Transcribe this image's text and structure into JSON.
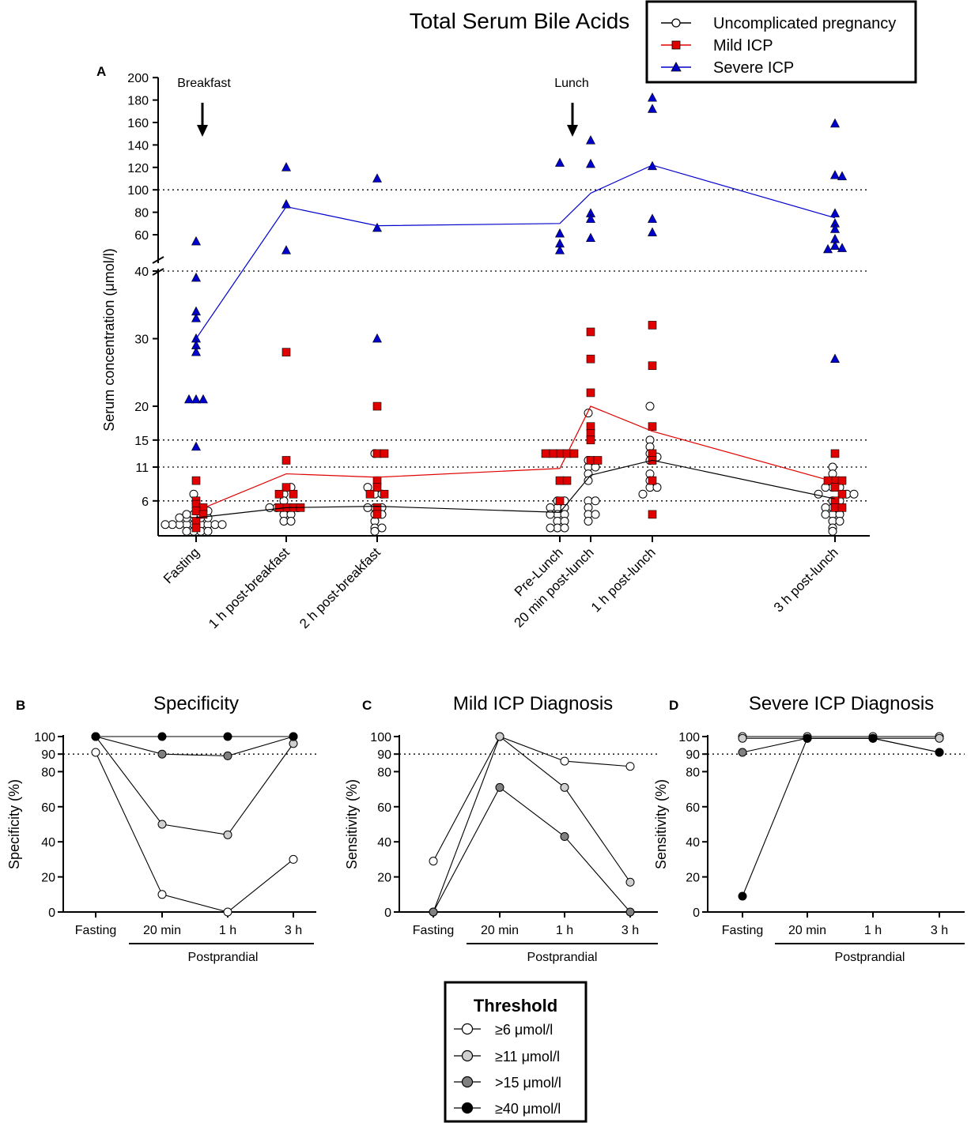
{
  "panel_a": {
    "title": "Total Serum Bile Acids",
    "letter": "A",
    "ylabel": "Serum concentration (μmol/l)",
    "annotations": [
      "Breakfast",
      "Lunch"
    ],
    "legend": [
      "Uncomplicated pregnancy",
      "Mild ICP",
      "Severe ICP"
    ]
  },
  "panel_b": {
    "letter": "B",
    "title": "Specificity",
    "ylabel": "Specificity (%)",
    "group_label": "Postprandial"
  },
  "panel_c": {
    "letter": "C",
    "title": "Mild ICP Diagnosis",
    "ylabel": "Sensitivity (%)",
    "group_label": "Postprandial"
  },
  "panel_d": {
    "letter": "D",
    "title": "Severe ICP Diagnosis",
    "ylabel": "Sensitivity (%)",
    "group_label": "Postprandial"
  },
  "threshold_legend": {
    "title": "Threshold",
    "items": [
      "≥6 μmol/l",
      "≥11 μmol/l",
      ">15 μmol/l",
      "≥40 μmol/l"
    ],
    "colors": [
      "#ffffff",
      "#cfcfcf",
      "#808080",
      "#000000"
    ]
  },
  "chart_data": [
    {
      "type": "scatter",
      "title": "Total Serum Bile Acids",
      "ylabel": "Serum concentration (μmol/l)",
      "y_axis": "broken: 0-40 linear, 40-200 compressed",
      "y_ticks_lower": [
        6,
        11,
        15,
        20,
        30,
        40
      ],
      "y_ticks_upper": [
        60,
        80,
        100,
        120,
        140,
        160,
        180,
        200
      ],
      "reference_lines": [
        6,
        11,
        15,
        40,
        100
      ],
      "categories": [
        "Fasting",
        "1 h post-breakfast",
        "2 h post-breakfast",
        "Pre-Lunch",
        "20 min post-lunch",
        "1 h post-lunch",
        "3 h post-lunch"
      ],
      "colors": {
        "Uncomplicated pregnancy": "#000000",
        "Mild ICP": "#e00000",
        "Severe ICP": "#0000cc"
      },
      "series": [
        {
          "name": "Uncomplicated pregnancy",
          "marker": "circle",
          "mean": [
            3.5,
            5,
            5.2,
            4.3,
            9.8,
            12,
            6.3
          ],
          "points": [
            [
              2.5,
              2.5,
              2.5,
              2.5,
              2.5,
              2.5,
              2.5,
              2.5,
              2.5,
              3.5,
              3.5,
              3.5,
              3.5,
              3.5,
              4,
              4,
              4,
              1.5,
              1.5,
              1.5,
              1.5,
              7,
              4.5
            ],
            [
              5,
              5,
              5,
              5,
              5,
              4,
              4,
              3,
              3,
              7,
              8,
              6
            ],
            [
              3,
              2,
              4,
              5,
              5,
              5,
              7,
              7,
              8,
              4,
              2,
              1.5,
              13
            ],
            [
              5,
              5,
              5,
              4,
              4,
              4,
              3,
              3,
              2,
              2,
              2,
              6,
              6
            ],
            [
              12,
              11,
              11,
              10,
              9,
              6,
              6,
              5,
              4,
              4,
              3,
              19
            ],
            [
              15,
              14,
              13,
              12,
              10,
              9,
              8,
              8,
              7,
              20,
              12.5
            ],
            [
              8,
              8,
              8,
              7,
              7,
              7,
              6,
              6,
              5,
              5,
              5,
              4,
              4,
              4,
              3,
              3,
              2,
              1.5,
              11,
              10,
              9
            ]
          ]
        },
        {
          "name": "Mild ICP",
          "marker": "square",
          "mean": [
            4.5,
            10,
            9.5,
            10.8,
            20,
            16.3,
            8.8
          ],
          "points": [
            [
              9,
              6,
              5.5,
              5,
              4.5,
              4,
              3,
              2
            ],
            [
              28,
              12,
              8,
              7,
              5,
              5,
              5,
              5,
              7
            ],
            [
              20,
              13,
              9,
              8,
              7,
              7,
              5,
              4,
              13
            ],
            [
              13,
              13,
              13,
              13,
              13,
              9,
              9,
              6
            ],
            [
              31,
              27,
              22,
              17,
              16,
              15,
              12,
              12
            ],
            [
              32,
              26,
              17,
              13,
              12,
              9,
              4
            ],
            [
              13,
              9,
              9,
              9,
              8,
              7,
              6,
              5,
              5
            ]
          ]
        },
        {
          "name": "Severe ICP",
          "marker": "triangle",
          "mean": [
            30,
            85,
            68,
            70,
            97,
            122,
            75
          ],
          "points": [
            [
              54,
              39,
              34,
              33,
              30,
              29,
              28,
              21,
              21,
              21,
              14
            ],
            [
              120,
              87,
              46
            ],
            [
              110,
              66,
              30
            ],
            [
              124,
              61,
              52,
              46
            ],
            [
              144,
              123,
              79,
              74,
              57
            ],
            [
              182,
              172,
              121,
              74,
              62
            ],
            [
              159,
              113,
              112,
              79,
              70,
              65,
              56,
              50,
              48,
              47,
              27
            ]
          ]
        }
      ]
    },
    {
      "type": "line",
      "title": "Specificity",
      "ylabel": "Specificity (%)",
      "x": [
        "Fasting",
        "20 min",
        "1 h",
        "3 h"
      ],
      "ylim": [
        0,
        100
      ],
      "reference_line": 90,
      "series": [
        {
          "name": "≥6 μmol/l",
          "values": [
            91,
            10,
            0,
            30
          ]
        },
        {
          "name": "≥11 μmol/l",
          "values": [
            100,
            50,
            44,
            96
          ]
        },
        {
          "name": ">15 μmol/l",
          "values": [
            100,
            90,
            89,
            100
          ]
        },
        {
          "name": "≥40 μmol/l",
          "values": [
            100,
            100,
            100,
            100
          ]
        }
      ]
    },
    {
      "type": "line",
      "title": "Mild ICP Diagnosis",
      "ylabel": "Sensitivity (%)",
      "x": [
        "Fasting",
        "20 min",
        "1 h",
        "3 h"
      ],
      "ylim": [
        0,
        100
      ],
      "reference_line": 90,
      "series": [
        {
          "name": "≥6 μmol/l",
          "values": [
            29,
            100,
            86,
            83
          ]
        },
        {
          "name": "≥11 μmol/l",
          "values": [
            0,
            100,
            71,
            17
          ]
        },
        {
          "name": ">15 μmol/l",
          "values": [
            0,
            71,
            43,
            0
          ]
        }
      ]
    },
    {
      "type": "line",
      "title": "Severe ICP Diagnosis",
      "ylabel": "Sensitivity (%)",
      "x": [
        "Fasting",
        "20 min",
        "1 h",
        "3 h"
      ],
      "ylim": [
        0,
        100
      ],
      "reference_line": 90,
      "series": [
        {
          "name": "≥6 μmol/l",
          "values": [
            100,
            100,
            100,
            100
          ]
        },
        {
          "name": "≥11 μmol/l",
          "values": [
            99,
            99,
            99,
            99
          ]
        },
        {
          "name": ">15 μmol/l",
          "values": [
            91,
            99,
            99,
            91
          ]
        },
        {
          "name": "≥40 μmol/l",
          "values": [
            9,
            99,
            99,
            91
          ]
        }
      ]
    }
  ]
}
